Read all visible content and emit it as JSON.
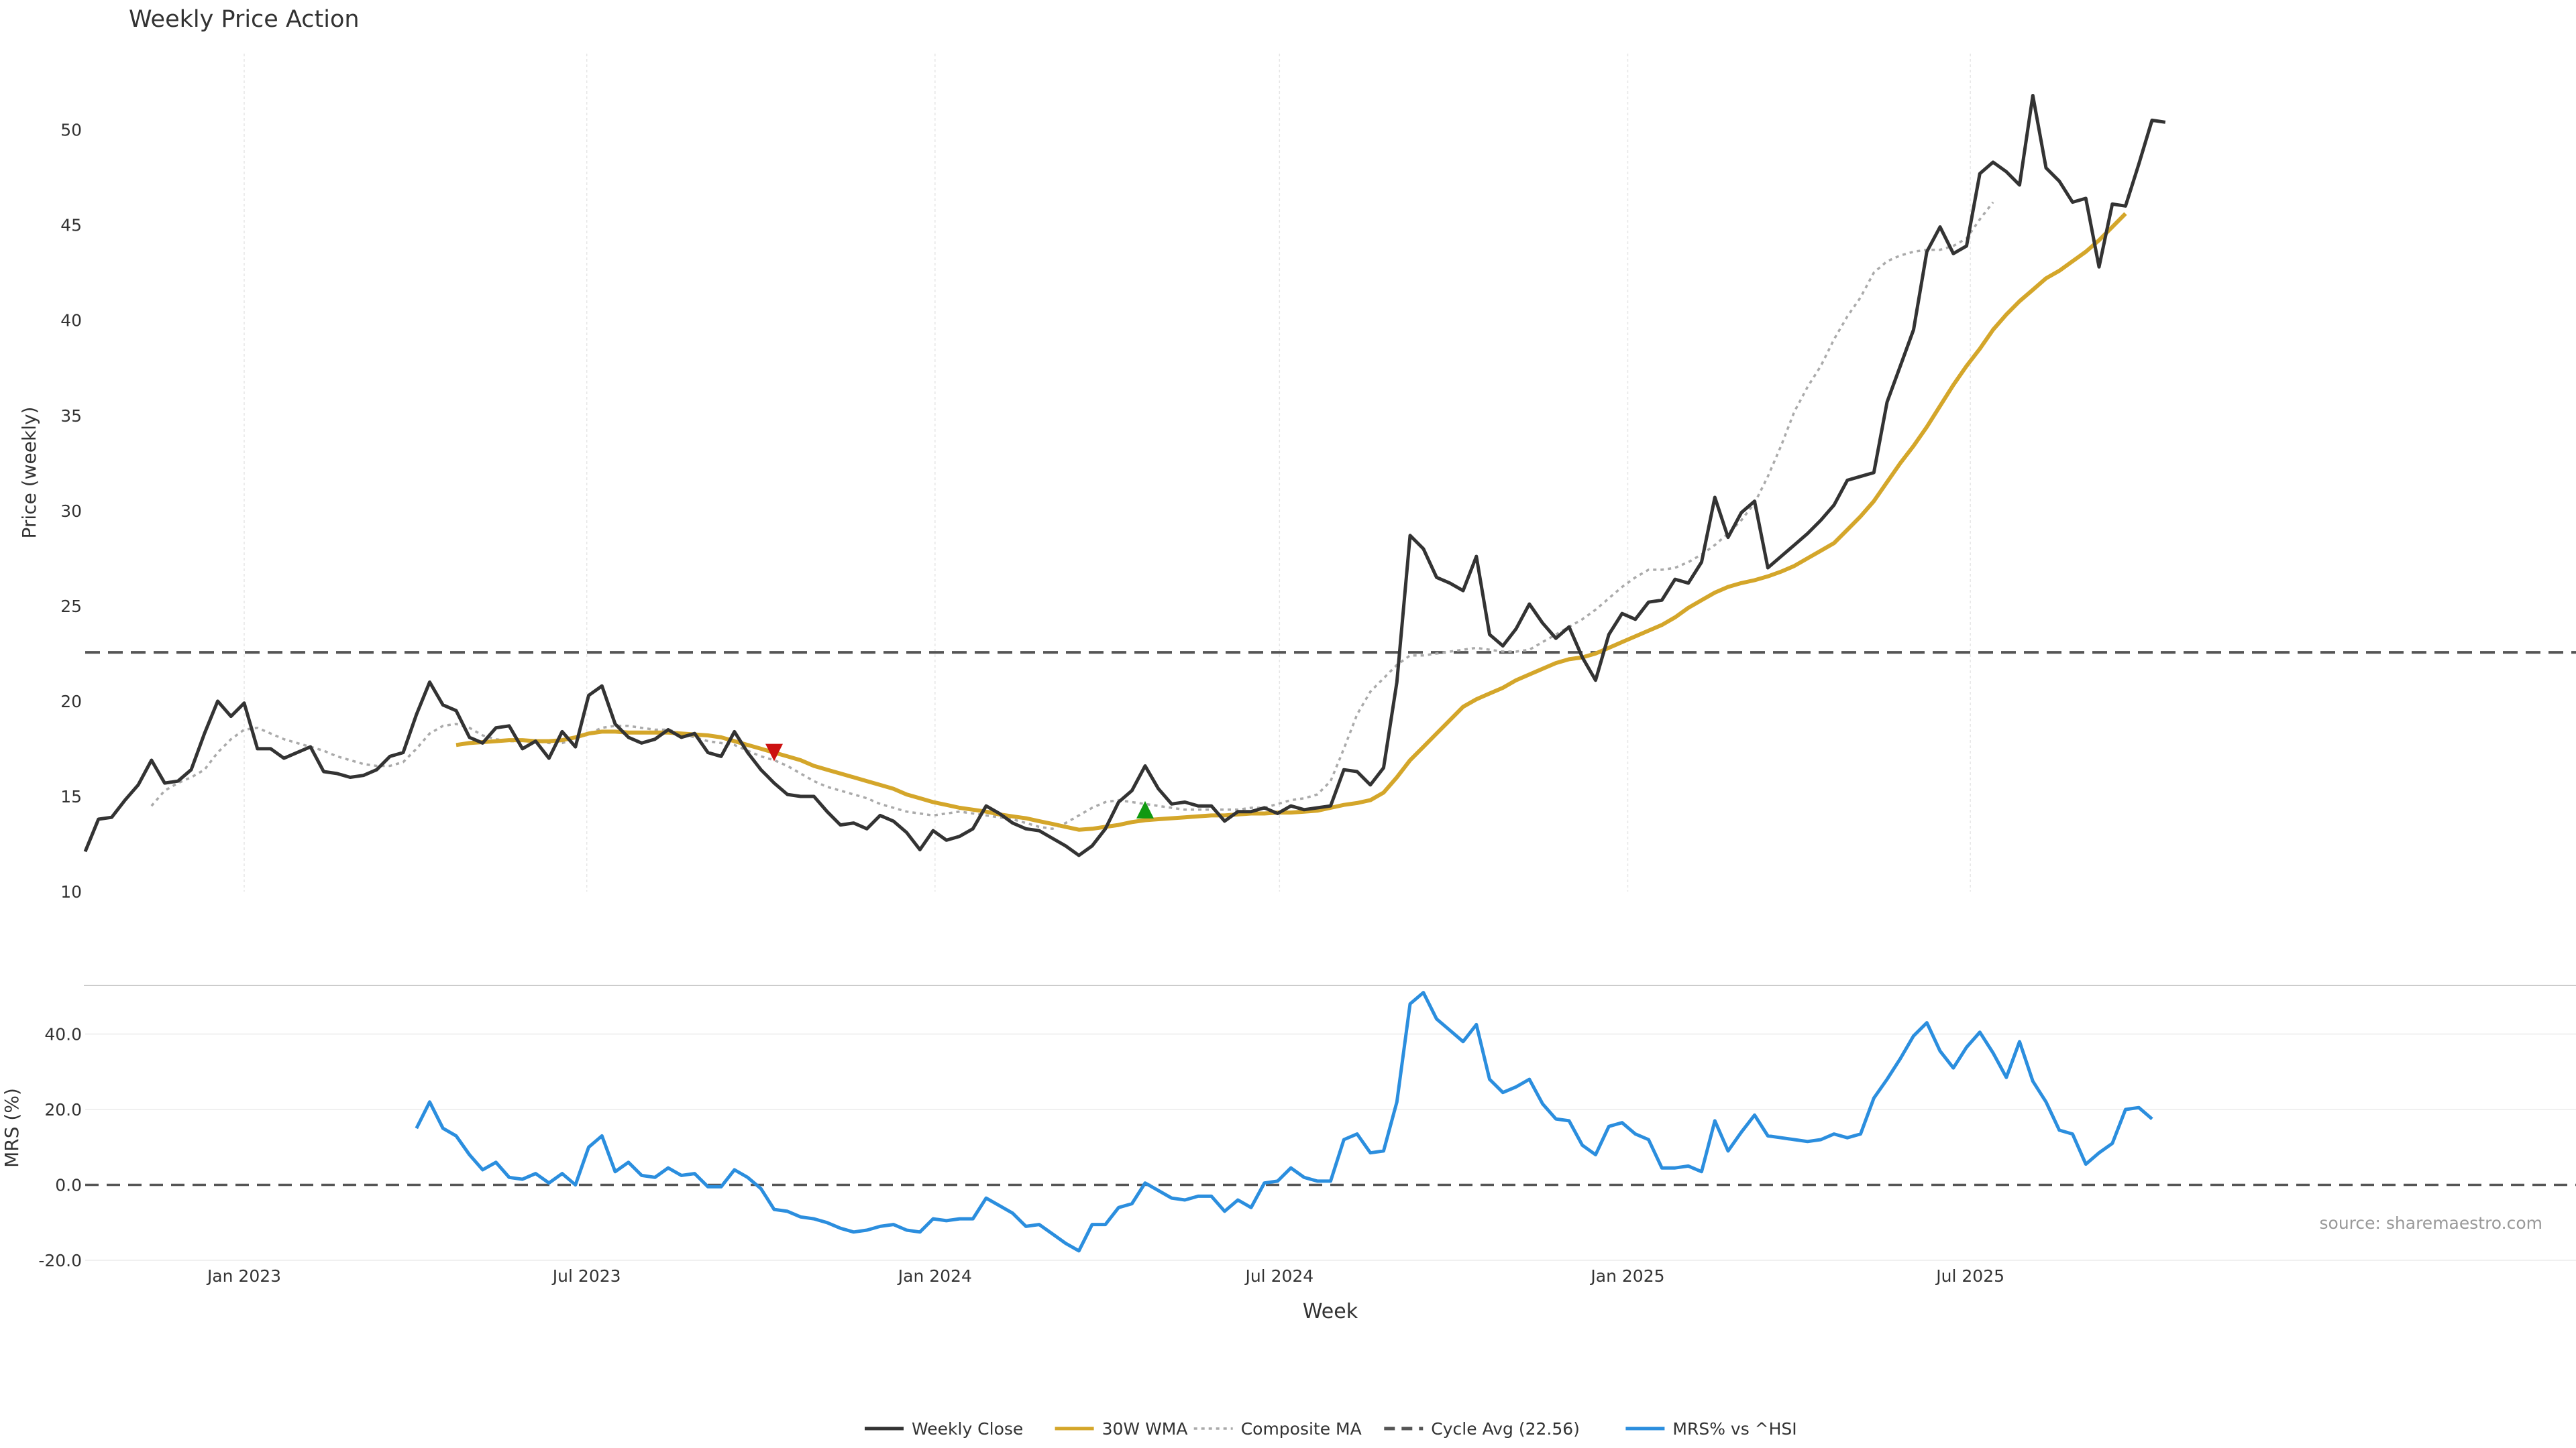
{
  "chart_data": {
    "type": "line",
    "title": "Weekly Price Action",
    "xlabel": "Week",
    "x_ticks": [
      "Jan 2023",
      "Jul 2023",
      "Jan 2024",
      "Jul 2024",
      "Jan 2025",
      "Jul 2025"
    ],
    "source": "source: sharemaestro.com",
    "price_panel": {
      "ylabel": "Price (weekly)",
      "ylim": [
        10,
        54
      ],
      "y_ticks": [
        10,
        15,
        20,
        25,
        30,
        35,
        40,
        45,
        50
      ],
      "cycle_avg": 22.56,
      "series": [
        {
          "name": "Weekly Close",
          "color": "#333333",
          "start_date": "2022-10-09",
          "values": [
            12.1,
            13.8,
            13.9,
            14.8,
            15.6,
            16.9,
            15.7,
            15.8,
            16.4,
            18.3,
            20.0,
            19.2,
            19.9,
            17.5,
            17.5,
            17.0,
            17.3,
            17.6,
            16.3,
            16.2,
            16.0,
            16.1,
            16.4,
            17.1,
            17.3,
            19.3,
            21.0,
            19.8,
            19.5,
            18.1,
            17.8,
            18.6,
            18.7,
            17.5,
            17.9,
            17.0,
            18.4,
            17.6,
            20.3,
            20.8,
            18.8,
            18.1,
            17.8,
            18.0,
            18.5,
            18.1,
            18.3,
            17.3,
            17.1,
            18.4,
            17.3,
            16.4,
            15.7,
            15.1,
            15.0,
            15.0,
            14.2,
            13.5,
            13.6,
            13.3,
            14.0,
            13.7,
            13.1,
            12.2,
            13.2,
            12.7,
            12.9,
            13.3,
            14.5,
            14.1,
            13.6,
            13.3,
            13.2,
            12.8,
            12.4,
            11.9,
            12.4,
            13.3,
            14.7,
            15.3,
            16.6,
            15.4,
            14.6,
            14.7,
            14.5,
            14.5,
            13.7,
            14.2,
            14.2,
            14.4,
            14.1,
            14.5,
            14.3,
            14.4,
            14.5,
            16.4,
            16.3,
            15.6,
            16.5,
            21.0,
            28.7,
            28.0,
            26.5,
            26.2,
            25.8,
            27.6,
            23.5,
            22.9,
            23.8,
            25.1,
            24.1,
            23.3,
            23.9,
            22.3,
            21.1,
            23.5,
            24.6,
            24.3,
            25.2,
            25.3,
            26.4,
            26.2,
            27.3,
            30.7,
            28.6,
            29.9,
            30.5,
            27.0,
            27.6,
            28.2,
            28.8,
            29.5,
            30.3,
            31.6,
            31.8,
            32.0,
            35.7,
            37.6,
            39.5,
            43.6,
            44.9,
            43.5,
            43.9,
            47.7,
            48.3,
            47.8,
            47.1,
            51.8,
            48.0,
            47.3,
            46.2,
            46.4,
            42.8,
            46.1,
            46.0,
            48.2,
            50.5,
            50.4
          ]
        },
        {
          "name": "30W WMA",
          "color": "#d4a62a",
          "start_index": 28,
          "values": [
            17.7,
            17.8,
            17.85,
            17.9,
            17.95,
            17.95,
            17.9,
            17.9,
            17.95,
            18.1,
            18.3,
            18.4,
            18.4,
            18.35,
            18.35,
            18.35,
            18.35,
            18.3,
            18.25,
            18.2,
            18.1,
            17.9,
            17.7,
            17.5,
            17.3,
            17.1,
            16.9,
            16.6,
            16.4,
            16.2,
            16.0,
            15.8,
            15.6,
            15.4,
            15.1,
            14.9,
            14.7,
            14.55,
            14.4,
            14.3,
            14.2,
            14.05,
            13.95,
            13.85,
            13.7,
            13.55,
            13.4,
            13.25,
            13.3,
            13.4,
            13.5,
            13.65,
            13.75,
            13.8,
            13.85,
            13.9,
            13.95,
            14.0,
            14.0,
            14.05,
            14.1,
            14.1,
            14.15,
            14.15,
            14.2,
            14.25,
            14.4,
            14.55,
            14.65,
            14.8,
            15.2,
            16.0,
            16.9,
            17.6,
            18.3,
            19.0,
            19.7,
            20.1,
            20.4,
            20.7,
            21.1,
            21.4,
            21.7,
            22.0,
            22.2,
            22.3,
            22.5,
            22.8,
            23.1,
            23.4,
            23.7,
            24.0,
            24.4,
            24.9,
            25.3,
            25.7,
            26.0,
            26.2,
            26.35,
            26.55,
            26.8,
            27.1,
            27.5,
            27.9,
            28.3,
            29.0,
            29.7,
            30.5,
            31.5,
            32.5,
            33.4,
            34.4,
            35.5,
            36.6,
            37.6,
            38.5,
            39.5,
            40.3,
            41.0,
            41.6,
            42.2,
            42.6,
            43.1,
            43.6,
            44.2,
            44.9,
            45.6
          ]
        },
        {
          "name": "Composite MA",
          "color": "#aaaaaa",
          "start_index": 5,
          "values": [
            14.5,
            15.3,
            15.7,
            16.0,
            16.4,
            17.3,
            18.0,
            18.5,
            18.6,
            18.3,
            18.0,
            17.8,
            17.6,
            17.4,
            17.1,
            16.9,
            16.7,
            16.6,
            16.6,
            16.8,
            17.5,
            18.3,
            18.7,
            18.8,
            18.6,
            18.2,
            18.0,
            17.9,
            17.9,
            17.9,
            17.8,
            17.8,
            18.0,
            18.3,
            18.6,
            18.7,
            18.7,
            18.6,
            18.5,
            18.5,
            18.3,
            18.1,
            17.9,
            17.8,
            17.7,
            17.4,
            17.1,
            16.9,
            16.6,
            16.2,
            15.8,
            15.5,
            15.3,
            15.1,
            14.9,
            14.6,
            14.4,
            14.2,
            14.1,
            14.0,
            14.1,
            14.2,
            14.1,
            14.0,
            13.9,
            13.8,
            13.6,
            13.4,
            13.3,
            13.6,
            14.0,
            14.4,
            14.7,
            14.8,
            14.7,
            14.6,
            14.5,
            14.4,
            14.3,
            14.3,
            14.3,
            14.3,
            14.3,
            14.4,
            14.4,
            14.6,
            14.8,
            14.9,
            15.1,
            15.8,
            17.5,
            19.3,
            20.5,
            21.2,
            21.9,
            22.4,
            22.4,
            22.5,
            22.6,
            22.7,
            22.8,
            22.7,
            22.6,
            22.6,
            22.7,
            23.1,
            23.5,
            23.9,
            24.3,
            24.8,
            25.4,
            26.0,
            26.5,
            26.9,
            26.9,
            27.0,
            27.3,
            27.7,
            28.2,
            28.8,
            29.5,
            30.4,
            31.8,
            33.4,
            35.2,
            36.5,
            37.6,
            39.0,
            40.2,
            41.2,
            42.5,
            43.1,
            43.4,
            43.6,
            43.7,
            43.7,
            43.9,
            44.3,
            45.3,
            46.2
          ]
        }
      ],
      "markers": [
        {
          "type": "sell",
          "index": 52,
          "value": 17.3,
          "color": "#cc1111"
        },
        {
          "type": "buy",
          "index": 80,
          "value": 14.3,
          "color": "#119911"
        }
      ]
    },
    "mrs_panel": {
      "ylabel": "MRS (%)",
      "ylim": [
        -20,
        52
      ],
      "y_ticks": [
        -20,
        0,
        20,
        40
      ],
      "y_tick_labels": [
        "-20.0",
        "0.0",
        "20.0",
        "40.0"
      ],
      "series": {
        "name": "MRS% vs ^HSI",
        "color": "#2b8ede",
        "start_index": 25,
        "values": [
          15.0,
          22.0,
          15.0,
          13.0,
          8.0,
          4.0,
          6.0,
          2.0,
          1.5,
          3.0,
          0.5,
          3.0,
          0.0,
          10.0,
          13.0,
          3.5,
          6.0,
          2.5,
          2.0,
          4.5,
          2.5,
          3.0,
          -0.5,
          -0.5,
          4.0,
          2.0,
          -1.0,
          -6.5,
          -7.0,
          -8.5,
          -9.0,
          -10.0,
          -11.5,
          -12.5,
          -12.0,
          -11.0,
          -10.5,
          -12.0,
          -12.5,
          -9.0,
          -9.5,
          -9.0,
          -9.0,
          -3.5,
          -5.5,
          -7.5,
          -11.0,
          -10.5,
          -13.0,
          -15.5,
          -17.5,
          -10.5,
          -10.5,
          -6.0,
          -5.0,
          0.5,
          -1.5,
          -3.5,
          -4.0,
          -3.0,
          -3.0,
          -7.0,
          -4.0,
          -6.0,
          0.5,
          1.0,
          4.5,
          2.0,
          1.0,
          1.0,
          12.0,
          13.5,
          8.5,
          9.0,
          22.0,
          48.0,
          51.0,
          44.0,
          41.0,
          38.0,
          42.5,
          28.0,
          24.5,
          26.0,
          28.0,
          21.5,
          17.5,
          17.0,
          10.5,
          8.0,
          15.5,
          16.5,
          13.5,
          12.0,
          4.5,
          4.5,
          5.0,
          3.5,
          17.0,
          9.0,
          14.0,
          18.5,
          13.0,
          12.5,
          12.0,
          11.5,
          12.0,
          13.5,
          12.5,
          13.5,
          23.0,
          28.0,
          33.5,
          39.5,
          43.0,
          35.5,
          31.0,
          36.5,
          40.5,
          35.0,
          28.5,
          38.0,
          27.5,
          22.0,
          14.5,
          13.5,
          5.5,
          8.5,
          11.0,
          20.0,
          20.5,
          17.5
        ]
      }
    },
    "legend": [
      {
        "label": "Weekly Close",
        "style": "solid",
        "color": "#333333"
      },
      {
        "label": "30W WMA",
        "style": "solid",
        "color": "#d4a62a"
      },
      {
        "label": "Composite MA",
        "style": "dotted",
        "color": "#aaaaaa"
      },
      {
        "label": "Cycle Avg (22.56)",
        "style": "dashed",
        "color": "#555555"
      },
      {
        "label": "MRS% vs ^HSI",
        "style": "solid",
        "color": "#2b8ede"
      }
    ],
    "legend_position": "bottom-center"
  }
}
